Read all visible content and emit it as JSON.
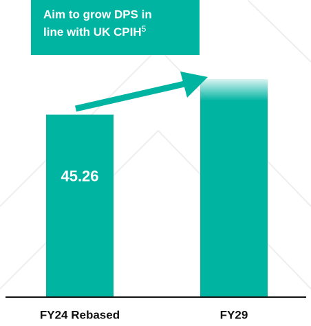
{
  "chart_data": {
    "type": "bar",
    "annotation": [
      "Aim to grow DPS in",
      "line with UK CPIH"
    ],
    "annotation_note": "5",
    "categories": [
      "FY24 Rebased",
      "FY29"
    ],
    "values": [
      45.26,
      54.1
    ],
    "show_value_label": [
      true,
      false
    ],
    "faded_top": [
      false,
      true
    ],
    "color": "#00b4a2"
  }
}
